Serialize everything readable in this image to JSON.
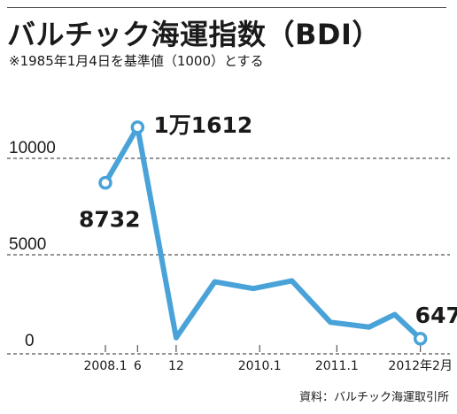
{
  "header": {
    "title": "バルチック海運指数（BDI）",
    "subtitle": "※1985年1月4日を基準値（1000）とする"
  },
  "source": "資料：バルチック海運取引所",
  "colors": {
    "line": "#4aa3d8",
    "gridline": "#555555",
    "axis": "#555555",
    "text": "#1a1a1a"
  },
  "chart_data": {
    "type": "line",
    "title": "バルチック海運指数（BDI）",
    "xlabel": "",
    "ylabel": "",
    "ylim": [
      0,
      12500
    ],
    "yticks": [
      0,
      5000,
      10000
    ],
    "ytick_labels": [
      "0",
      "5000",
      "10000"
    ],
    "grid": true,
    "x_range": [
      2008.0,
      2012.167
    ],
    "xticks": [
      {
        "x": 2008.0,
        "label": "2008.1"
      },
      {
        "x": 2008.417,
        "label": "6"
      },
      {
        "x": 2008.917,
        "label": "12"
      },
      {
        "x": 2010.0,
        "label": "2010.1"
      },
      {
        "x": 2011.0,
        "label": "2011.1"
      },
      {
        "x": 2012.083,
        "label": "2012年2月"
      }
    ],
    "series": [
      {
        "points": [
          {
            "x": 2008.0,
            "y": 8732,
            "label": "8732",
            "marker": true
          },
          {
            "x": 2008.417,
            "y": 11612,
            "label": "1万1612",
            "marker": true
          },
          {
            "x": 2008.917,
            "y": 700
          },
          {
            "x": 2009.417,
            "y": 3600
          },
          {
            "x": 2009.917,
            "y": 3250
          },
          {
            "x": 2010.417,
            "y": 3650
          },
          {
            "x": 2010.917,
            "y": 1500
          },
          {
            "x": 2011.417,
            "y": 1250
          },
          {
            "x": 2011.75,
            "y": 1900
          },
          {
            "x": 2012.083,
            "y": 647,
            "label": "647",
            "marker": true
          }
        ]
      }
    ]
  }
}
